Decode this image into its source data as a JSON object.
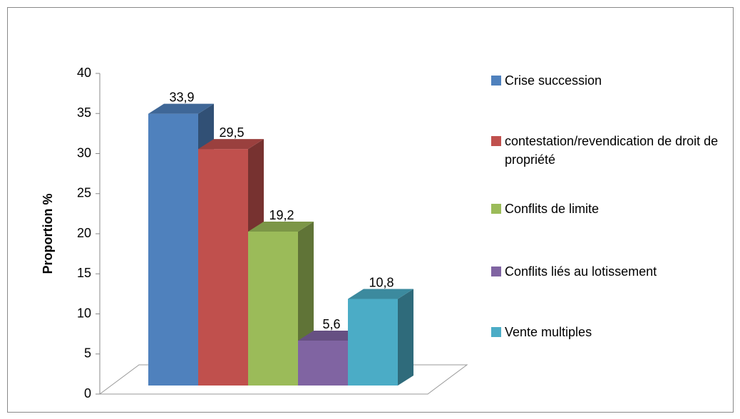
{
  "chart_data": {
    "type": "bar3d",
    "ylabel": "Proportion %",
    "ylim": [
      0,
      40
    ],
    "yticks": [
      0,
      5,
      10,
      15,
      20,
      25,
      30,
      35,
      40
    ],
    "legend": "right",
    "series": [
      {
        "name": "Crise succession",
        "color": "#4f81bd",
        "values": [
          33.9
        ],
        "value_labels": [
          "33,9"
        ]
      },
      {
        "name": "contestation/revendication de droit de propriété",
        "color": "#c0504d",
        "values": [
          29.5
        ],
        "value_labels": [
          "29,5"
        ]
      },
      {
        "name": "Conflits de limite",
        "color": "#9bbb59",
        "values": [
          19.2
        ],
        "value_labels": [
          "19,2"
        ]
      },
      {
        "name": "Conflits liés au lotissement",
        "color": "#8064a2",
        "values": [
          5.6
        ],
        "value_labels": [
          "5,6"
        ]
      },
      {
        "name": "Vente multiples",
        "color": "#4bacc6",
        "values": [
          10.8
        ],
        "value_labels": [
          "10,8"
        ]
      }
    ]
  }
}
